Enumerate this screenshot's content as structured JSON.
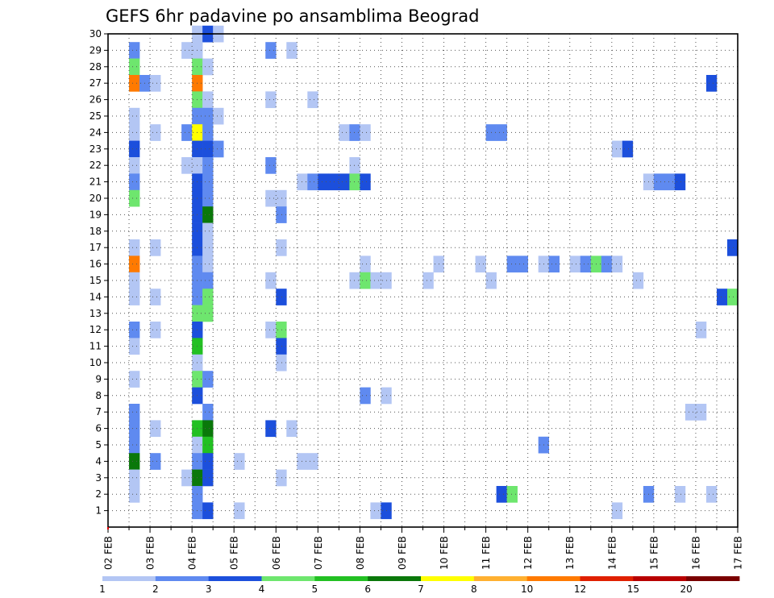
{
  "chart_data": {
    "type": "heatmap",
    "title": "GEFS 6hr padavine po ansamblima Beograd",
    "y_ticks": [
      "1",
      "2",
      "3",
      "4",
      "5",
      "6",
      "7",
      "8",
      "9",
      "10",
      "11",
      "12",
      "13",
      "14",
      "15",
      "16",
      "17",
      "18",
      "19",
      "20",
      "21",
      "22",
      "23",
      "24",
      "25",
      "26",
      "27",
      "28",
      "29",
      "30"
    ],
    "x_ticks": [
      "02 FEB",
      "03 FEB",
      "04 FEB",
      "05 FEB",
      "06 FEB",
      "07 FEB",
      "08 FEB",
      "09 FEB",
      "10 FEB",
      "11 FEB",
      "12 FEB",
      "13 FEB",
      "14 FEB",
      "15 FEB",
      "16 FEB",
      "17 FEB"
    ],
    "xlim_days": [
      2,
      17
    ],
    "ylim": [
      0,
      30
    ],
    "grid": true,
    "colorbar": {
      "tick_labels": [
        "1",
        "2",
        "3",
        "4",
        "5",
        "6",
        "7",
        "8",
        "10",
        "12",
        "15",
        "20"
      ],
      "colors": [
        "#b3c6f4",
        "#5f8af0",
        "#1c4fdc",
        "#6ee66e",
        "#22c022",
        "#0a780a",
        "#ffff00",
        "#ffb030",
        "#ff7a00",
        "#e02000",
        "#b80000",
        "#7a0000"
      ]
    },
    "cells": [
      {
        "member": 30,
        "day": 4,
        "step": 0,
        "level": 1
      },
      {
        "member": 30,
        "day": 4,
        "step": 1,
        "level": 3
      },
      {
        "member": 30,
        "day": 4,
        "step": 2,
        "level": 1
      },
      {
        "member": 29,
        "day": 2,
        "step": 2,
        "level": 2
      },
      {
        "member": 29,
        "day": 3,
        "step": 3,
        "level": 1
      },
      {
        "member": 29,
        "day": 4,
        "step": 0,
        "level": 1
      },
      {
        "member": 29,
        "day": 5,
        "step": 3,
        "level": 2
      },
      {
        "member": 29,
        "day": 6,
        "step": 1,
        "level": 1
      },
      {
        "member": 28,
        "day": 2,
        "step": 2,
        "level": 4
      },
      {
        "member": 28,
        "day": 4,
        "step": 0,
        "level": 4
      },
      {
        "member": 28,
        "day": 4,
        "step": 1,
        "level": 1
      },
      {
        "member": 27,
        "day": 2,
        "step": 2,
        "level": 9
      },
      {
        "member": 27,
        "day": 2,
        "step": 3,
        "level": 2
      },
      {
        "member": 27,
        "day": 3,
        "step": 0,
        "level": 1
      },
      {
        "member": 27,
        "day": 4,
        "step": 0,
        "level": 9
      },
      {
        "member": 27,
        "day": 16,
        "step": 1,
        "level": 3
      },
      {
        "member": 26,
        "day": 4,
        "step": 0,
        "level": 4
      },
      {
        "member": 26,
        "day": 4,
        "step": 1,
        "level": 1
      },
      {
        "member": 26,
        "day": 5,
        "step": 3,
        "level": 1
      },
      {
        "member": 26,
        "day": 6,
        "step": 3,
        "level": 1
      },
      {
        "member": 25,
        "day": 2,
        "step": 2,
        "level": 1
      },
      {
        "member": 25,
        "day": 4,
        "step": 0,
        "level": 2
      },
      {
        "member": 25,
        "day": 4,
        "step": 1,
        "level": 2
      },
      {
        "member": 25,
        "day": 4,
        "step": 2,
        "level": 1
      },
      {
        "member": 24,
        "day": 2,
        "step": 2,
        "level": 1
      },
      {
        "member": 24,
        "day": 3,
        "step": 0,
        "level": 1
      },
      {
        "member": 24,
        "day": 3,
        "step": 3,
        "level": 2
      },
      {
        "member": 24,
        "day": 4,
        "step": 0,
        "level": 7
      },
      {
        "member": 24,
        "day": 4,
        "step": 1,
        "level": 2
      },
      {
        "member": 24,
        "day": 7,
        "step": 2,
        "level": 1
      },
      {
        "member": 24,
        "day": 7,
        "step": 3,
        "level": 2
      },
      {
        "member": 24,
        "day": 8,
        "step": 0,
        "level": 1
      },
      {
        "member": 24,
        "day": 11,
        "step": 0,
        "level": 2
      },
      {
        "member": 24,
        "day": 11,
        "step": 1,
        "level": 2
      },
      {
        "member": 23,
        "day": 2,
        "step": 2,
        "level": 3
      },
      {
        "member": 23,
        "day": 4,
        "step": 0,
        "level": 3
      },
      {
        "member": 23,
        "day": 4,
        "step": 1,
        "level": 3
      },
      {
        "member": 23,
        "day": 4,
        "step": 2,
        "level": 2
      },
      {
        "member": 23,
        "day": 14,
        "step": 0,
        "level": 1
      },
      {
        "member": 23,
        "day": 14,
        "step": 1,
        "level": 3
      },
      {
        "member": 22,
        "day": 2,
        "step": 2,
        "level": 1
      },
      {
        "member": 22,
        "day": 3,
        "step": 3,
        "level": 1
      },
      {
        "member": 22,
        "day": 4,
        "step": 0,
        "level": 1
      },
      {
        "member": 22,
        "day": 4,
        "step": 1,
        "level": 2
      },
      {
        "member": 22,
        "day": 5,
        "step": 3,
        "level": 2
      },
      {
        "member": 22,
        "day": 7,
        "step": 3,
        "level": 1
      },
      {
        "member": 21,
        "day": 2,
        "step": 2,
        "level": 2
      },
      {
        "member": 21,
        "day": 4,
        "step": 0,
        "level": 3
      },
      {
        "member": 21,
        "day": 4,
        "step": 1,
        "level": 2
      },
      {
        "member": 21,
        "day": 6,
        "step": 2,
        "level": 1
      },
      {
        "member": 21,
        "day": 6,
        "step": 3,
        "level": 2
      },
      {
        "member": 21,
        "day": 7,
        "step": 0,
        "level": 3
      },
      {
        "member": 21,
        "day": 7,
        "step": 1,
        "level": 3
      },
      {
        "member": 21,
        "day": 7,
        "step": 2,
        "level": 3
      },
      {
        "member": 21,
        "day": 7,
        "step": 3,
        "level": 4
      },
      {
        "member": 21,
        "day": 8,
        "step": 0,
        "level": 3
      },
      {
        "member": 21,
        "day": 14,
        "step": 3,
        "level": 1
      },
      {
        "member": 21,
        "day": 15,
        "step": 0,
        "level": 2
      },
      {
        "member": 21,
        "day": 15,
        "step": 1,
        "level": 2
      },
      {
        "member": 21,
        "day": 15,
        "step": 2,
        "level": 3
      },
      {
        "member": 20,
        "day": 2,
        "step": 2,
        "level": 4
      },
      {
        "member": 20,
        "day": 4,
        "step": 0,
        "level": 3
      },
      {
        "member": 20,
        "day": 4,
        "step": 1,
        "level": 2
      },
      {
        "member": 20,
        "day": 5,
        "step": 3,
        "level": 1
      },
      {
        "member": 20,
        "day": 6,
        "step": 0,
        "level": 1
      },
      {
        "member": 19,
        "day": 4,
        "step": 0,
        "level": 3
      },
      {
        "member": 19,
        "day": 4,
        "step": 1,
        "level": 6
      },
      {
        "member": 19,
        "day": 6,
        "step": 0,
        "level": 2
      },
      {
        "member": 18,
        "day": 4,
        "step": 0,
        "level": 3
      },
      {
        "member": 18,
        "day": 4,
        "step": 1,
        "level": 1
      },
      {
        "member": 17,
        "day": 2,
        "step": 2,
        "level": 1
      },
      {
        "member": 17,
        "day": 3,
        "step": 0,
        "level": 1
      },
      {
        "member": 17,
        "day": 4,
        "step": 0,
        "level": 3
      },
      {
        "member": 17,
        "day": 4,
        "step": 1,
        "level": 1
      },
      {
        "member": 17,
        "day": 6,
        "step": 0,
        "level": 1
      },
      {
        "member": 17,
        "day": 16,
        "step": 3,
        "level": 3
      },
      {
        "member": 16,
        "day": 2,
        "step": 2,
        "level": 9
      },
      {
        "member": 16,
        "day": 4,
        "step": 0,
        "level": 2
      },
      {
        "member": 16,
        "day": 4,
        "step": 1,
        "level": 1
      },
      {
        "member": 16,
        "day": 8,
        "step": 0,
        "level": 1
      },
      {
        "member": 16,
        "day": 9,
        "step": 3,
        "level": 1
      },
      {
        "member": 16,
        "day": 10,
        "step": 3,
        "level": 1
      },
      {
        "member": 16,
        "day": 11,
        "step": 2,
        "level": 2
      },
      {
        "member": 16,
        "day": 11,
        "step": 3,
        "level": 2
      },
      {
        "member": 16,
        "day": 12,
        "step": 1,
        "level": 1
      },
      {
        "member": 16,
        "day": 12,
        "step": 2,
        "level": 2
      },
      {
        "member": 16,
        "day": 13,
        "step": 0,
        "level": 1
      },
      {
        "member": 16,
        "day": 13,
        "step": 1,
        "level": 2
      },
      {
        "member": 16,
        "day": 13,
        "step": 2,
        "level": 4
      },
      {
        "member": 16,
        "day": 13,
        "step": 3,
        "level": 2
      },
      {
        "member": 16,
        "day": 14,
        "step": 0,
        "level": 1
      },
      {
        "member": 15,
        "day": 2,
        "step": 2,
        "level": 1
      },
      {
        "member": 15,
        "day": 4,
        "step": 0,
        "level": 2
      },
      {
        "member": 15,
        "day": 4,
        "step": 1,
        "level": 2
      },
      {
        "member": 15,
        "day": 5,
        "step": 3,
        "level": 1
      },
      {
        "member": 15,
        "day": 7,
        "step": 3,
        "level": 1
      },
      {
        "member": 15,
        "day": 8,
        "step": 0,
        "level": 4
      },
      {
        "member": 15,
        "day": 8,
        "step": 1,
        "level": 1
      },
      {
        "member": 15,
        "day": 8,
        "step": 2,
        "level": 1
      },
      {
        "member": 15,
        "day": 9,
        "step": 2,
        "level": 1
      },
      {
        "member": 15,
        "day": 11,
        "step": 0,
        "level": 1
      },
      {
        "member": 15,
        "day": 14,
        "step": 2,
        "level": 1
      },
      {
        "member": 14,
        "day": 2,
        "step": 2,
        "level": 1
      },
      {
        "member": 14,
        "day": 3,
        "step": 0,
        "level": 1
      },
      {
        "member": 14,
        "day": 4,
        "step": 0,
        "level": 2
      },
      {
        "member": 14,
        "day": 4,
        "step": 1,
        "level": 4
      },
      {
        "member": 14,
        "day": 6,
        "step": 0,
        "level": 3
      },
      {
        "member": 14,
        "day": 16,
        "step": 2,
        "level": 3
      },
      {
        "member": 14,
        "day": 16,
        "step": 3,
        "level": 4
      },
      {
        "member": 13,
        "day": 4,
        "step": 0,
        "level": 4
      },
      {
        "member": 13,
        "day": 4,
        "step": 1,
        "level": 4
      },
      {
        "member": 12,
        "day": 2,
        "step": 2,
        "level": 2
      },
      {
        "member": 12,
        "day": 3,
        "step": 0,
        "level": 1
      },
      {
        "member": 12,
        "day": 4,
        "step": 0,
        "level": 3
      },
      {
        "member": 12,
        "day": 5,
        "step": 3,
        "level": 1
      },
      {
        "member": 12,
        "day": 6,
        "step": 0,
        "level": 4
      },
      {
        "member": 12,
        "day": 16,
        "step": 0,
        "level": 1
      },
      {
        "member": 11,
        "day": 2,
        "step": 2,
        "level": 1
      },
      {
        "member": 11,
        "day": 4,
        "step": 0,
        "level": 5
      },
      {
        "member": 11,
        "day": 6,
        "step": 0,
        "level": 3
      },
      {
        "member": 10,
        "day": 4,
        "step": 0,
        "level": 1
      },
      {
        "member": 10,
        "day": 6,
        "step": 0,
        "level": 1
      },
      {
        "member": 9,
        "day": 2,
        "step": 2,
        "level": 1
      },
      {
        "member": 9,
        "day": 4,
        "step": 0,
        "level": 4
      },
      {
        "member": 9,
        "day": 4,
        "step": 1,
        "level": 2
      },
      {
        "member": 8,
        "day": 4,
        "step": 0,
        "level": 3
      },
      {
        "member": 8,
        "day": 8,
        "step": 0,
        "level": 2
      },
      {
        "member": 8,
        "day": 8,
        "step": 2,
        "level": 1
      },
      {
        "member": 7,
        "day": 2,
        "step": 2,
        "level": 2
      },
      {
        "member": 7,
        "day": 4,
        "step": 1,
        "level": 2
      },
      {
        "member": 7,
        "day": 15,
        "step": 3,
        "level": 1
      },
      {
        "member": 7,
        "day": 16,
        "step": 0,
        "level": 1
      },
      {
        "member": 6,
        "day": 2,
        "step": 2,
        "level": 2
      },
      {
        "member": 6,
        "day": 3,
        "step": 0,
        "level": 1
      },
      {
        "member": 6,
        "day": 4,
        "step": 0,
        "level": 5
      },
      {
        "member": 6,
        "day": 4,
        "step": 1,
        "level": 6
      },
      {
        "member": 6,
        "day": 5,
        "step": 3,
        "level": 3
      },
      {
        "member": 6,
        "day": 6,
        "step": 1,
        "level": 1
      },
      {
        "member": 5,
        "day": 2,
        "step": 2,
        "level": 2
      },
      {
        "member": 5,
        "day": 4,
        "step": 0,
        "level": 1
      },
      {
        "member": 5,
        "day": 4,
        "step": 1,
        "level": 5
      },
      {
        "member": 5,
        "day": 12,
        "step": 1,
        "level": 2
      },
      {
        "member": 4,
        "day": 2,
        "step": 2,
        "level": 6
      },
      {
        "member": 4,
        "day": 3,
        "step": 0,
        "level": 2
      },
      {
        "member": 4,
        "day": 4,
        "step": 0,
        "level": 2
      },
      {
        "member": 4,
        "day": 4,
        "step": 1,
        "level": 3
      },
      {
        "member": 4,
        "day": 5,
        "step": 0,
        "level": 1
      },
      {
        "member": 4,
        "day": 6,
        "step": 2,
        "level": 1
      },
      {
        "member": 4,
        "day": 6,
        "step": 3,
        "level": 1
      },
      {
        "member": 3,
        "day": 2,
        "step": 2,
        "level": 1
      },
      {
        "member": 3,
        "day": 3,
        "step": 3,
        "level": 1
      },
      {
        "member": 3,
        "day": 4,
        "step": 0,
        "level": 6
      },
      {
        "member": 3,
        "day": 4,
        "step": 1,
        "level": 3
      },
      {
        "member": 3,
        "day": 6,
        "step": 0,
        "level": 1
      },
      {
        "member": 2,
        "day": 2,
        "step": 2,
        "level": 1
      },
      {
        "member": 2,
        "day": 4,
        "step": 0,
        "level": 2
      },
      {
        "member": 2,
        "day": 11,
        "step": 1,
        "level": 3
      },
      {
        "member": 2,
        "day": 11,
        "step": 2,
        "level": 4
      },
      {
        "member": 2,
        "day": 14,
        "step": 3,
        "level": 2
      },
      {
        "member": 2,
        "day": 15,
        "step": 2,
        "level": 1
      },
      {
        "member": 2,
        "day": 16,
        "step": 1,
        "level": 1
      },
      {
        "member": 1,
        "day": 4,
        "step": 0,
        "level": 2
      },
      {
        "member": 1,
        "day": 4,
        "step": 1,
        "level": 3
      },
      {
        "member": 1,
        "day": 5,
        "step": 0,
        "level": 1
      },
      {
        "member": 1,
        "day": 8,
        "step": 1,
        "level": 1
      },
      {
        "member": 1,
        "day": 8,
        "step": 2,
        "level": 3
      },
      {
        "member": 1,
        "day": 14,
        "step": 0,
        "level": 1
      }
    ]
  }
}
